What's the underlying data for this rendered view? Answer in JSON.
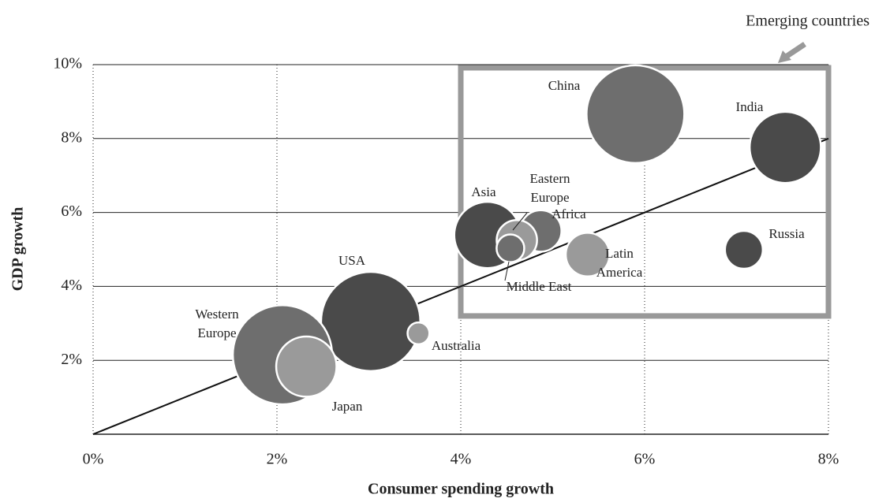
{
  "chart_data": {
    "type": "scatter",
    "xlabel": "Consumer spending growth",
    "ylabel": "GDP growth",
    "xlim": [
      0,
      8
    ],
    "ylim": [
      0,
      10
    ],
    "xticks": [
      {
        "value": 0,
        "label": "0%"
      },
      {
        "value": 2,
        "label": "2%"
      },
      {
        "value": 4,
        "label": "4%"
      },
      {
        "value": 6,
        "label": "6%"
      },
      {
        "value": 8,
        "label": "8%"
      }
    ],
    "yticks": [
      {
        "value": 2,
        "label": "2%"
      },
      {
        "value": 4,
        "label": "4%"
      },
      {
        "value": 6,
        "label": "6%"
      },
      {
        "value": 8,
        "label": "8%"
      },
      {
        "value": 10,
        "label": "10%"
      }
    ],
    "names": [
      "China",
      "India",
      "Russia",
      "Asia",
      "Eastern Europe",
      "Africa",
      "Middle East",
      "Latin America",
      "USA",
      "Western Europe",
      "Japan",
      "Australia"
    ],
    "x": [
      5.9,
      7.53,
      7.08,
      4.29,
      4.61,
      4.87,
      4.54,
      5.38,
      3.02,
      2.06,
      2.32,
      3.54
    ],
    "y": [
      8.66,
      7.76,
      4.99,
      5.39,
      5.25,
      5.5,
      5.03,
      4.86,
      3.05,
      2.15,
      1.83,
      2.73
    ],
    "size": [
      100,
      53,
      15,
      46,
      17,
      18,
      8,
      20,
      103,
      103,
      38,
      5
    ],
    "colors": [
      "#6e6e6e",
      "#4a4a4a",
      "#4a4a4a",
      "#4a4a4a",
      "#9a9a9a",
      "#6e6e6e",
      "#6e6e6e",
      "#9a9a9a",
      "#4a4a4a",
      "#6e6e6e",
      "#9a9a9a",
      "#9a9a9a"
    ],
    "trend_line": {
      "x": [
        0,
        8
      ],
      "y": [
        0,
        8
      ]
    },
    "annotation": {
      "text": "Emerging countries",
      "x": [
        4,
        8
      ],
      "y": [
        3.2,
        10
      ]
    },
    "grid": true
  }
}
